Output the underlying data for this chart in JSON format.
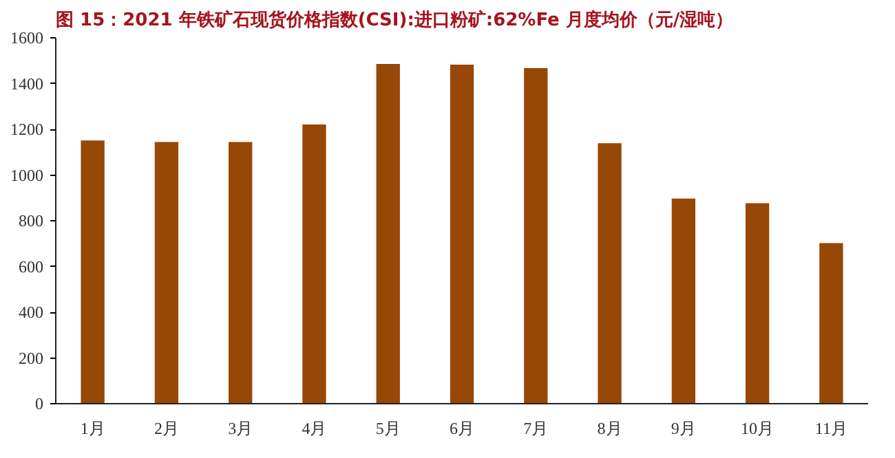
{
  "chart_data": {
    "type": "bar",
    "title": "图 15：2021 年铁矿石现货价格指数(CSI):进口粉矿:62%Fe 月度均价（元/湿吨）",
    "categories": [
      "1月",
      "2月",
      "3月",
      "4月",
      "5月",
      "6月",
      "7月",
      "8月",
      "9月",
      "10月",
      "11月"
    ],
    "values": [
      1151,
      1144,
      1144,
      1221,
      1486,
      1483,
      1468,
      1139,
      897,
      877,
      702
    ],
    "color": "#974706",
    "ylim": [
      0,
      1600
    ],
    "yticks": [
      0,
      200,
      400,
      600,
      800,
      1000,
      1200,
      1400,
      1600
    ],
    "grid": false
  }
}
